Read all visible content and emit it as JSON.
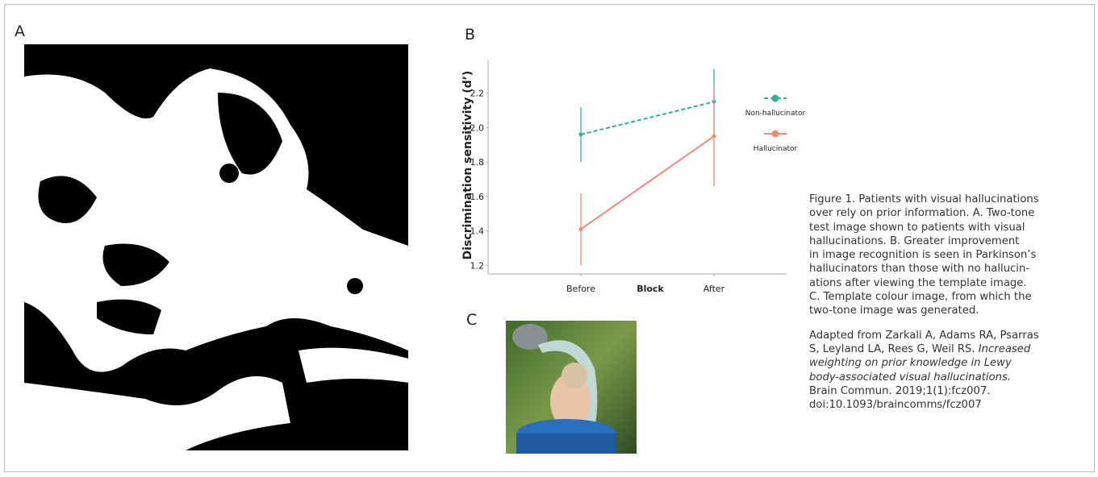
{
  "panels": {
    "a": "A",
    "b": "B",
    "c": "C"
  },
  "chart_data": {
    "type": "line",
    "y_label": "Discrimination sensitivity (d’)",
    "x_label": "Block",
    "categories": [
      "Before",
      "After"
    ],
    "ylim": [
      1.15,
      2.39
    ],
    "yticks": [
      1.2,
      1.4,
      1.6,
      1.8,
      2.0,
      2.2
    ],
    "series": [
      {
        "name": "Non-hallucinator",
        "color": "#2bb39c",
        "dashed": true,
        "values": [
          1.96,
          2.15
        ],
        "errors": [
          0.16,
          0.19
        ]
      },
      {
        "name": "Hallucinator",
        "color": "#f08a72",
        "dashed": false,
        "values": [
          1.41,
          1.95
        ],
        "errors": [
          0.21,
          0.29
        ]
      }
    ]
  },
  "caption": {
    "lines": [
      "Figure 1. Patients with visual hallucinations",
      "over rely on prior information. A. Two-tone",
      "test image shown to patients with visual",
      "hallucinations. B. Greater improvement",
      "in image recognition is seen in Parkinson’s",
      "hallucinators than those with no hallucin-",
      "ations after viewing the template image.",
      "C. Template colour image, from which the",
      "two-tone image was generated."
    ],
    "reference": [
      [
        {
          "text": "Adapted from Zarkali A, Adams RA, Psarras"
        }
      ],
      [
        {
          "text": "S, Leyland LA, Rees G, Weil RS. "
        },
        {
          "text": "Increased",
          "italic": true
        }
      ],
      [
        {
          "text": "weighting on prior knowledge in Lewy",
          "italic": true
        }
      ],
      [
        {
          "text": "body-associated visual hallucinations.",
          "italic": true
        }
      ],
      [
        {
          "text": "Brain Commun. 2019;1(1):fcz007."
        }
      ],
      [
        {
          "text": "doi:10.1093/braincomms/fcz007"
        }
      ]
    ]
  }
}
